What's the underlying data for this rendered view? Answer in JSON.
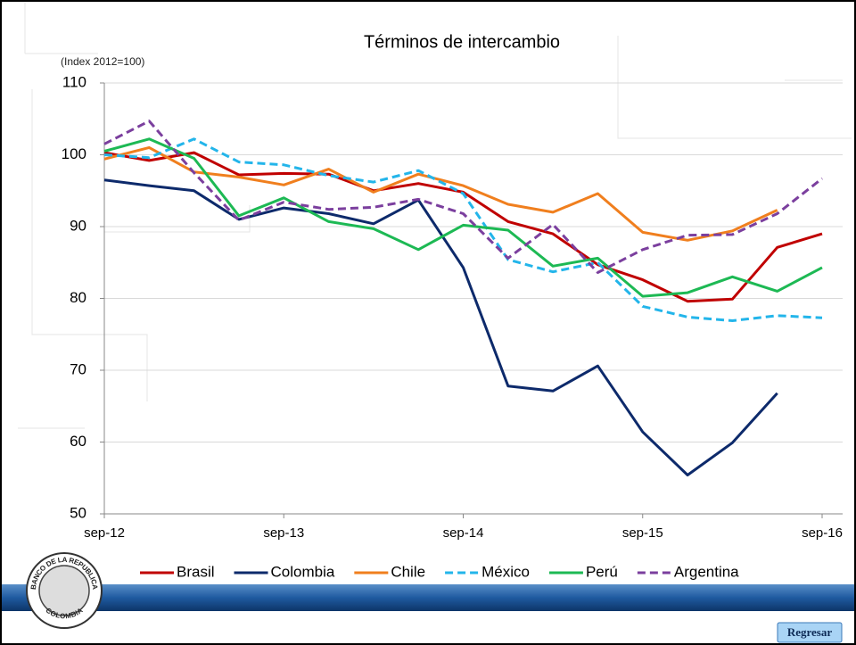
{
  "chart_data": {
    "type": "line",
    "title": "Términos de intercambio",
    "subtitle": "(Index 2012=100)",
    "categories": [
      "sep-12",
      null,
      null,
      null,
      "sep-13",
      null,
      null,
      null,
      "sep-14",
      null,
      null,
      null,
      "sep-15",
      null,
      null,
      null,
      "sep-16"
    ],
    "series": [
      {
        "name": "Brasil",
        "color": "#c00000",
        "dashed": false,
        "values": [
          100.3,
          99.2,
          100.3,
          97.2,
          97.4,
          97.3,
          95.0,
          96.0,
          94.8,
          90.7,
          89.0,
          84.7,
          82.6,
          79.6,
          79.9,
          87.1,
          89.0
        ]
      },
      {
        "name": "Colombia",
        "color": "#0d2a6b",
        "dashed": false,
        "values": [
          96.5,
          95.7,
          95.0,
          91.0,
          92.6,
          91.8,
          90.4,
          93.7,
          84.3,
          67.8,
          67.1,
          70.6,
          61.4,
          55.4,
          59.9,
          66.8,
          null
        ]
      },
      {
        "name": "Chile",
        "color": "#f07f1e",
        "dashed": false,
        "values": [
          99.4,
          101.0,
          97.6,
          96.9,
          95.8,
          98.0,
          94.8,
          97.3,
          95.7,
          93.1,
          92.0,
          94.6,
          89.2,
          88.1,
          89.4,
          92.3,
          null
        ]
      },
      {
        "name": "México",
        "color": "#23b5ea",
        "dashed": true,
        "values": [
          100.0,
          99.6,
          102.2,
          99.0,
          98.6,
          97.1,
          96.2,
          97.8,
          94.6,
          85.4,
          83.7,
          85.0,
          78.9,
          77.4,
          76.9,
          77.6,
          77.3
        ]
      },
      {
        "name": "Perú",
        "color": "#1db954",
        "dashed": false,
        "values": [
          100.5,
          102.2,
          99.5,
          91.5,
          94.0,
          90.7,
          89.7,
          86.8,
          90.2,
          89.5,
          84.5,
          85.6,
          80.3,
          80.8,
          83.0,
          81.0,
          84.3
        ]
      },
      {
        "name": "Argentina",
        "color": "#7b3f9e",
        "dashed": true,
        "values": [
          101.5,
          104.7,
          97.5,
          90.9,
          93.4,
          92.4,
          92.7,
          93.8,
          91.8,
          85.6,
          90.3,
          83.6,
          86.8,
          88.8,
          88.9,
          91.8,
          96.7
        ]
      }
    ],
    "ylim": [
      50,
      110
    ],
    "yticks": [
      50,
      60,
      70,
      80,
      90,
      100,
      110
    ],
    "grid": true
  },
  "logo": {
    "top": "BANCO DE LA REPUBLICA",
    "bottom": "COLOMBIA"
  },
  "button": {
    "label": "Regresar"
  }
}
